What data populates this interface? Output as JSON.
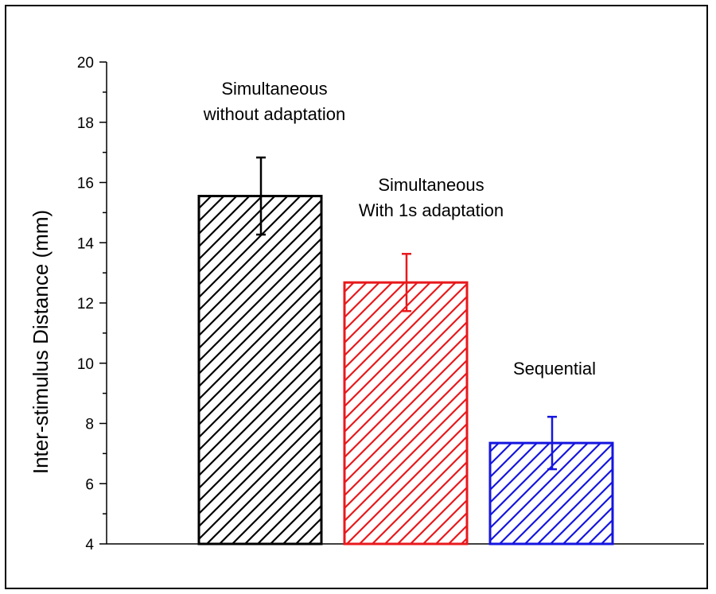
{
  "chart_data": {
    "type": "bar",
    "title": "",
    "xlabel": "",
    "ylabel": "Inter-stimulus Distance (mm)",
    "ylim": [
      4,
      20
    ],
    "yticks": [
      "4",
      "6",
      "8",
      "10",
      "12",
      "14",
      "16",
      "18",
      "20"
    ],
    "grid": false,
    "categories": [
      "Simultaneous without adaptation",
      "Simultaneous With 1s adaptation",
      "Sequential"
    ],
    "label_lines": [
      [
        "Simultaneous",
        "without adaptation"
      ],
      [
        "Simultaneous",
        "With 1s adaptation"
      ],
      [
        "Sequential"
      ]
    ],
    "values": [
      15.55,
      12.68,
      7.35
    ],
    "errors": [
      1.28,
      0.95,
      0.87
    ],
    "bar_fill": "diagonal-hatch",
    "colors": [
      "#000000",
      "#e8191c",
      "#1515e0"
    ]
  }
}
